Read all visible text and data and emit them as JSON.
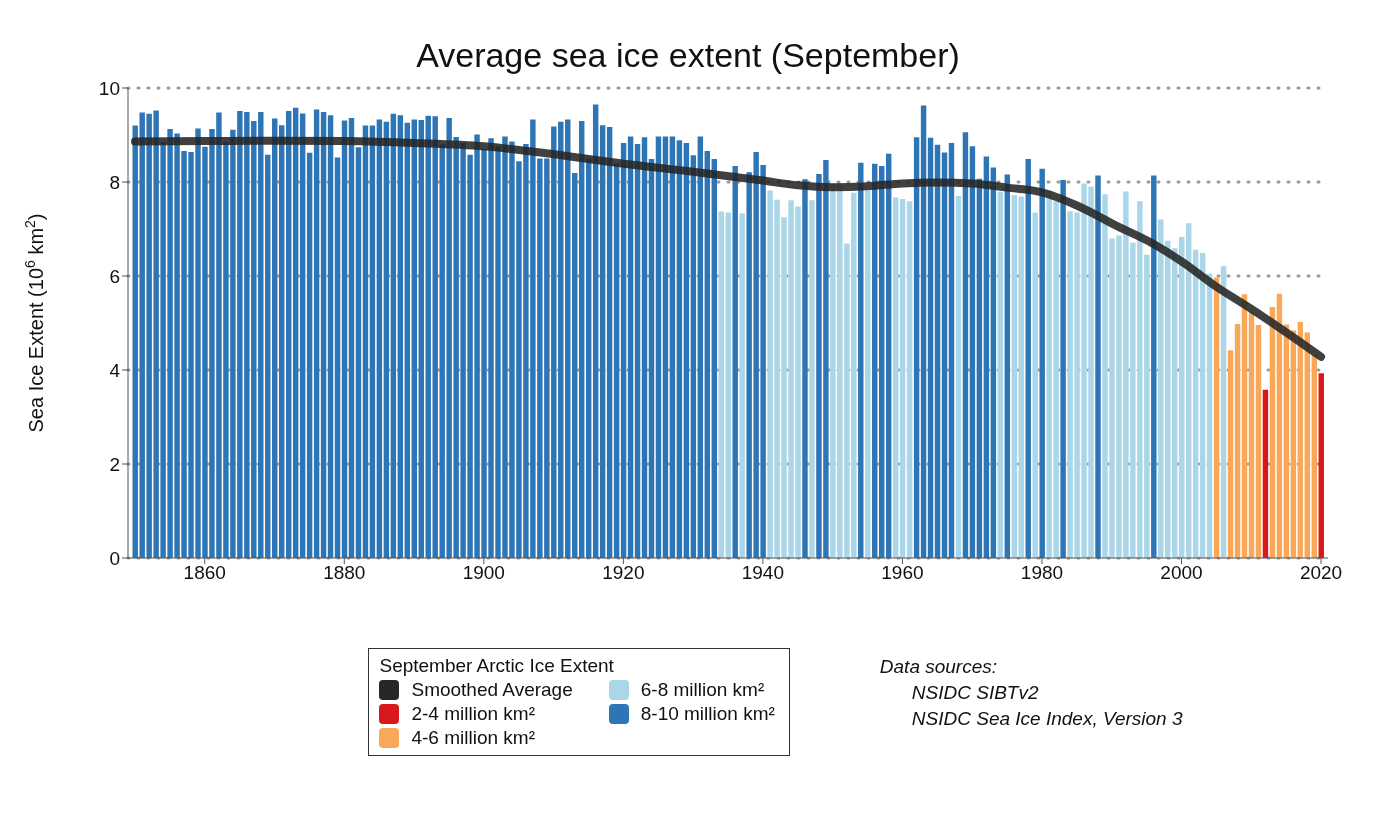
{
  "chart_data": {
    "type": "bar",
    "title": "Average sea ice extent (September)",
    "ylabel": "Sea Ice Extent (10$^{6}$ km$^{2}$)",
    "legend_title": "September Arctic Ice Extent",
    "xlim": [
      1849,
      2021
    ],
    "xticks": [
      1860,
      1880,
      1900,
      1920,
      1940,
      1960,
      1980,
      2000,
      2020
    ],
    "ylim": [
      0,
      10
    ],
    "yticks": [
      0,
      2,
      4,
      6,
      8,
      10
    ],
    "grid": "y",
    "legend": "bottom",
    "annotations": [
      "Data sources:",
      "NSIDC SIBTv2",
      "NSIDC Sea Ice Index, Version 3"
    ],
    "series": [
      {
        "name": "Smoothed Average",
        "type": "line",
        "color": "#262626",
        "x": [
          1850,
          1860,
          1870,
          1880,
          1890,
          1900,
          1910,
          1920,
          1930,
          1940,
          1945,
          1950,
          1955,
          1960,
          1965,
          1970,
          1975,
          1980,
          1985,
          1988,
          1990,
          1996,
          2000,
          2005,
          2010,
          2015,
          2020
        ],
        "values": [
          8.86,
          8.87,
          8.88,
          8.87,
          8.83,
          8.76,
          8.59,
          8.39,
          8.22,
          8.03,
          7.93,
          7.89,
          7.91,
          7.97,
          7.99,
          7.97,
          7.88,
          7.78,
          7.5,
          7.28,
          7.12,
          6.68,
          6.31,
          5.77,
          5.3,
          4.8,
          4.28
        ]
      },
      {
        "name": "2-4 million km²",
        "color": "#d7191c",
        "x": [
          2012,
          2020
        ],
        "values": [
          3.58,
          3.93
        ]
      },
      {
        "name": "4-6 million km²",
        "color": "#f9a85a",
        "x": [
          2005,
          2007,
          2008,
          2009,
          2010,
          2011,
          2013,
          2014,
          2015,
          2016,
          2017,
          2018,
          2019
        ],
        "values": [
          5.97,
          4.42,
          4.98,
          5.61,
          5.24,
          4.96,
          5.34,
          5.62,
          4.97,
          4.84,
          5.02,
          4.8,
          4.32
        ]
      },
      {
        "name": "6-8 million km²",
        "color": "#a9d6e8",
        "x": [
          1934,
          1935,
          1937,
          1941,
          1942,
          1943,
          1944,
          1945,
          1947,
          1950,
          1951,
          1952,
          1953,
          1955,
          1959,
          1960,
          1961,
          1968,
          1974,
          1976,
          1977,
          1979,
          1981,
          1982,
          1984,
          1985,
          1986,
          1987,
          1989,
          1990,
          1991,
          1992,
          1993,
          1994,
          1995,
          1997,
          1998,
          1999,
          2000,
          2001,
          2002,
          2003,
          2004,
          2006
        ],
        "values": [
          7.37,
          7.35,
          7.33,
          7.82,
          7.62,
          7.25,
          7.61,
          7.48,
          7.61,
          7.95,
          7.95,
          6.69,
          7.77,
          7.82,
          7.67,
          7.64,
          7.59,
          7.7,
          7.79,
          7.72,
          7.69,
          7.35,
          7.82,
          7.59,
          7.38,
          7.35,
          7.97,
          7.9,
          7.74,
          6.8,
          6.86,
          7.8,
          6.71,
          7.59,
          6.45,
          7.2,
          6.75,
          6.59,
          6.83,
          7.12,
          6.56,
          6.49,
          6.05,
          6.21
        ]
      },
      {
        "name": "8-10 million km²",
        "color": "#2e75b6",
        "x": [
          1850,
          1851,
          1852,
          1853,
          1854,
          1855,
          1856,
          1857,
          1858,
          1859,
          1860,
          1861,
          1862,
          1863,
          1864,
          1865,
          1866,
          1867,
          1868,
          1869,
          1870,
          1871,
          1872,
          1873,
          1874,
          1875,
          1876,
          1877,
          1878,
          1879,
          1880,
          1881,
          1882,
          1883,
          1884,
          1885,
          1886,
          1887,
          1888,
          1889,
          1890,
          1891,
          1892,
          1893,
          1894,
          1895,
          1896,
          1897,
          1898,
          1899,
          1900,
          1901,
          1902,
          1903,
          1904,
          1905,
          1906,
          1907,
          1908,
          1909,
          1910,
          1911,
          1912,
          1913,
          1914,
          1915,
          1916,
          1917,
          1918,
          1919,
          1920,
          1921,
          1922,
          1923,
          1924,
          1925,
          1926,
          1927,
          1928,
          1929,
          1930,
          1931,
          1932,
          1933,
          1936,
          1938,
          1939,
          1940,
          1946,
          1948,
          1949,
          1954,
          1956,
          1957,
          1958,
          1962,
          1963,
          1964,
          1965,
          1966,
          1967,
          1969,
          1970,
          1971,
          1972,
          1973,
          1975,
          1978,
          1980,
          1983,
          1988,
          1996
        ],
        "values": [
          9.2,
          9.48,
          9.45,
          9.52,
          8.85,
          9.13,
          9.03,
          8.66,
          8.64,
          9.14,
          8.75,
          9.13,
          9.48,
          8.85,
          9.11,
          9.51,
          9.49,
          9.3,
          9.49,
          8.58,
          9.35,
          9.21,
          9.51,
          9.58,
          9.46,
          8.62,
          9.54,
          9.49,
          9.42,
          8.52,
          9.31,
          9.36,
          8.74,
          9.2,
          9.2,
          9.33,
          9.28,
          9.45,
          9.42,
          9.26,
          9.33,
          9.32,
          9.41,
          9.4,
          8.8,
          9.36,
          8.96,
          8.83,
          8.58,
          9.01,
          8.7,
          8.93,
          8.76,
          8.97,
          8.86,
          8.44,
          8.81,
          9.33,
          8.5,
          8.5,
          9.18,
          9.28,
          9.33,
          8.19,
          9.3,
          8.5,
          9.65,
          9.21,
          9.17,
          8.4,
          8.83,
          8.97,
          8.81,
          8.95,
          8.49,
          8.97,
          8.97,
          8.97,
          8.89,
          8.83,
          8.57,
          8.97,
          8.66,
          8.49,
          8.34,
          8.21,
          8.64,
          8.36,
          8.06,
          8.17,
          8.47,
          8.41,
          8.39,
          8.34,
          8.6,
          8.95,
          9.63,
          8.94,
          8.79,
          8.63,
          8.83,
          9.06,
          8.76,
          8.07,
          8.54,
          8.31,
          8.16,
          8.49,
          8.28,
          8.04,
          8.14,
          8.14
        ]
      }
    ]
  }
}
